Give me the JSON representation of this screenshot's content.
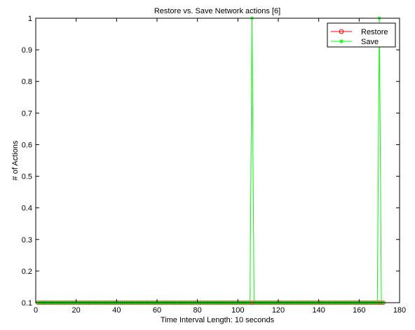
{
  "chart_data": {
    "type": "line",
    "title": "Restore vs. Save Network actions [6]",
    "xlabel": "Time Interval Length: 10 seconds",
    "ylabel": "# of Actions",
    "xlim": [
      0,
      180
    ],
    "ylim": [
      0.1,
      1
    ],
    "x_ticks": [
      0,
      20,
      40,
      60,
      80,
      100,
      120,
      140,
      160,
      180
    ],
    "y_ticks": [
      0.1,
      0.2,
      0.3,
      0.4,
      0.5,
      0.6,
      0.7,
      0.8,
      0.9,
      1
    ],
    "grid": false,
    "legend_position": "top-right",
    "x_start": 1,
    "x_end": 172,
    "baseline": 0.1,
    "series": [
      {
        "name": "Restore",
        "color": "#ff0000",
        "marker": "circle",
        "baseline": 0.1,
        "spikes": []
      },
      {
        "name": "Save",
        "color": "#00ff00",
        "marker": "star",
        "baseline": 0.1,
        "spikes": [
          {
            "x": 107,
            "y": 1
          },
          {
            "x": 170,
            "y": 1
          }
        ]
      }
    ]
  }
}
